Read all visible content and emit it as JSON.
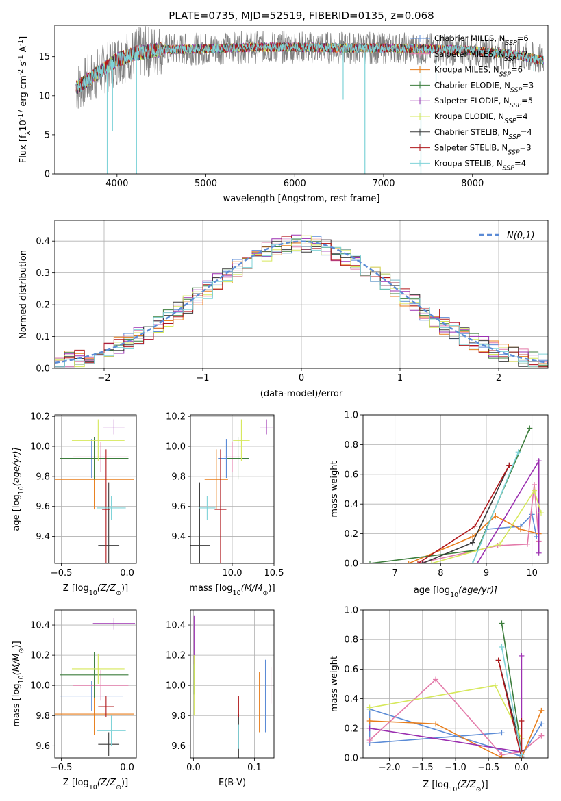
{
  "colors": {
    "Chabrier MILES": "#5b8bd6",
    "Salpeter MILES": "#e37aa9",
    "Kroupa MILES": "#e87e1c",
    "Chabrier ELODIE": "#3c7d3c",
    "Salpeter ELODIE": "#9b2fb0",
    "Kroupa ELODIE": "#d6e85a",
    "Chabrier STELIB": "#3a3a3a",
    "Salpeter STELIB": "#b0181c",
    "Kroupa STELIB": "#7fd3d8",
    "normal": "#5b8bd6",
    "grid": "#b0b0b0"
  },
  "chart_data": [
    {
      "id": "spectrum",
      "type": "line",
      "title": "PLATE=0735, MJD=52519, FIBERID=0135, z=0.068",
      "xlabel": "wavelength [Angstrom, rest frame]",
      "ylabel": "Flux [f",
      "ylabel_rest": "10",
      "ylabel_exp": "-17",
      "ylabel_tail": " erg cm",
      "ylabel_exp2": "-2",
      "ylabel_tail2": " s",
      "ylabel_exp3": "-1",
      "ylabel_tail3": " A",
      "ylabel_exp4": "-1",
      "ylabel_end": "]",
      "xlim": [
        3300,
        8850
      ],
      "ylim": [
        0,
        19
      ],
      "xticks": [
        4000,
        5000,
        6000,
        7000,
        8000
      ],
      "yticks": [
        0,
        5,
        10,
        15
      ],
      "legend_position": "right",
      "legend": [
        {
          "model": "Chabrier MILES",
          "n": "6"
        },
        {
          "model": "Salpeter MILES",
          "n": "7"
        },
        {
          "model": "Kroupa MILES",
          "n": "6"
        },
        {
          "model": "Chabrier ELODIE",
          "n": "3"
        },
        {
          "model": "Salpeter ELODIE",
          "n": "5"
        },
        {
          "model": "Kroupa ELODIE",
          "n": "4"
        },
        {
          "model": "Chabrier STELIB",
          "n": "4"
        },
        {
          "model": "Salpeter STELIB",
          "n": "3"
        },
        {
          "model": "Kroupa STELIB",
          "n": "4"
        }
      ],
      "legend_prefix": "N",
      "legend_sub": "SSP",
      "continuum": [
        [
          3540,
          11
        ],
        [
          3800,
          13
        ],
        [
          4000,
          14.6
        ],
        [
          4200,
          15.4
        ],
        [
          4500,
          15.9
        ],
        [
          5000,
          16.0
        ],
        [
          5500,
          16.2
        ],
        [
          6000,
          16.2
        ],
        [
          6500,
          16.1
        ],
        [
          7000,
          16.1
        ],
        [
          7500,
          16.0
        ],
        [
          8000,
          15.8
        ],
        [
          8500,
          15.2
        ],
        [
          8800,
          14.5
        ]
      ],
      "dips": [
        [
          3890,
          0
        ],
        [
          4220,
          0
        ],
        [
          6790,
          0
        ],
        [
          7420,
          0
        ],
        [
          3950,
          5.5
        ],
        [
          6545,
          9.5
        ],
        [
          7590,
          11.5
        ],
        [
          8690,
          13.2
        ]
      ]
    },
    {
      "id": "residuals",
      "type": "histogram",
      "xlabel": "(data-model)/error",
      "ylabel": "Normed distribution",
      "xlim": [
        -2.5,
        2.5
      ],
      "ylim": [
        0,
        0.465
      ],
      "xticks": [
        -2,
        -1,
        0,
        1,
        2
      ],
      "yticks": [
        0.0,
        0.1,
        0.2,
        0.3,
        0.4
      ],
      "grid": true,
      "legend_position": "top-right",
      "legend_label": "N(0,1)",
      "bin_width": 0.1
    },
    {
      "id": "age_vs_Z",
      "type": "scatter",
      "xlabel": "Z [log",
      "xlabel_sub": "10",
      "xlabel_tail": "(Z/Z",
      "xlabel_sub2": "⊙",
      "xlabel_end": ")]",
      "ylabel": "age  [log",
      "ylabel_sub": "10",
      "ylabel_tail": "(age/yr)]",
      "xlim": [
        -0.55,
        0.07
      ],
      "ylim": [
        9.22,
        10.21
      ],
      "xticks": [
        -0.5,
        0.0
      ],
      "yticks": [
        9.4,
        9.6,
        9.8,
        10.0,
        10.2
      ],
      "grid": true,
      "points": [
        {
          "model": "Chabrier MILES",
          "x": -0.27,
          "xerr": 0.24,
          "y": 9.92,
          "yerr": 0.13
        },
        {
          "model": "Salpeter MILES",
          "x": -0.2,
          "xerr": 0.21,
          "y": 9.93,
          "yerr": 0.1
        },
        {
          "model": "Kroupa MILES",
          "x": -0.25,
          "xerr": 0.3,
          "y": 9.78,
          "yerr": 0.2
        },
        {
          "model": "Chabrier ELODIE",
          "x": -0.25,
          "xerr": 0.26,
          "y": 9.92,
          "yerr": 0.14
        },
        {
          "model": "Salpeter ELODIE",
          "x": -0.1,
          "xerr": 0.08,
          "y": 10.13,
          "yerr": 0.05
        },
        {
          "model": "Kroupa ELODIE",
          "x": -0.22,
          "xerr": 0.2,
          "y": 10.04,
          "yerr": 0.14
        },
        {
          "model": "Chabrier STELIB",
          "x": -0.14,
          "xerr": 0.08,
          "y": 9.34,
          "yerr": 0.42
        },
        {
          "model": "Salpeter STELIB",
          "x": -0.16,
          "xerr": 0.03,
          "y": 9.58,
          "yerr": 0.4
        },
        {
          "model": "Kroupa STELIB",
          "x": -0.12,
          "xerr": 0.11,
          "y": 9.59,
          "yerr": 0.08
        }
      ]
    },
    {
      "id": "age_vs_mass",
      "type": "scatter",
      "xlabel": "mass [log",
      "xlabel_sub": "10",
      "xlabel_tail": "(M/M",
      "xlabel_sub2": "⊙",
      "xlabel_end": ")]",
      "xlim": [
        9.5,
        10.5
      ],
      "ylim": [
        9.22,
        10.21
      ],
      "xticks": [
        10.0,
        10.5
      ],
      "yticks": [
        9.4,
        9.6,
        9.8,
        10.0,
        10.2
      ],
      "grid": true,
      "points": [
        {
          "model": "Chabrier MILES",
          "x": 9.93,
          "xerr": 0.1,
          "y": 9.92,
          "yerr": 0.13
        },
        {
          "model": "Salpeter MILES",
          "x": 10.0,
          "xerr": 0.1,
          "y": 9.93,
          "yerr": 0.1
        },
        {
          "model": "Kroupa MILES",
          "x": 9.81,
          "xerr": 0.14,
          "y": 9.78,
          "yerr": 0.2
        },
        {
          "model": "Chabrier ELODIE",
          "x": 10.07,
          "xerr": 0.13,
          "y": 9.92,
          "yerr": 0.14
        },
        {
          "model": "Salpeter ELODIE",
          "x": 10.41,
          "xerr": 0.08,
          "y": 10.13,
          "yerr": 0.05
        },
        {
          "model": "Kroupa ELODIE",
          "x": 10.11,
          "xerr": 0.1,
          "y": 10.04,
          "yerr": 0.14
        },
        {
          "model": "Chabrier STELIB",
          "x": 9.61,
          "xerr": 0.12,
          "y": 9.34,
          "yerr": 0.42
        },
        {
          "model": "Salpeter STELIB",
          "x": 9.86,
          "xerr": 0.07,
          "y": 9.58,
          "yerr": 0.4
        },
        {
          "model": "Kroupa STELIB",
          "x": 9.7,
          "xerr": 0.1,
          "y": 9.59,
          "yerr": 0.08
        }
      ]
    },
    {
      "id": "weight_vs_age",
      "type": "line",
      "xlabel": "age  [log",
      "xlabel_sub": "10",
      "xlabel_tail": "(age/yr)]",
      "ylabel": "mass weight",
      "xlim": [
        6.3,
        10.35
      ],
      "ylim": [
        0,
        1.0
      ],
      "xticks": [
        7,
        8,
        9,
        10
      ],
      "yticks": [
        0.0,
        0.2,
        0.4,
        0.6,
        0.8,
        1.0
      ],
      "grid": true,
      "series": [
        {
          "model": "Chabrier MILES",
          "x": [
            8.7,
            9.0,
            9.75,
            10.0,
            10.1
          ],
          "y": [
            0.0,
            0.23,
            0.25,
            0.33,
            0.18
          ]
        },
        {
          "model": "Salpeter MILES",
          "x": [
            7.5,
            9.25,
            9.9,
            10.05,
            10.15
          ],
          "y": [
            0.0,
            0.12,
            0.13,
            0.53,
            0.15
          ]
        },
        {
          "model": "Kroupa MILES",
          "x": [
            7.3,
            8.7,
            9.2,
            9.75,
            10.15
          ],
          "y": [
            0.0,
            0.18,
            0.32,
            0.23,
            0.2
          ]
        },
        {
          "model": "Chabrier ELODIE",
          "x": [
            6.45,
            8.8,
            9.95
          ],
          "y": [
            0.0,
            0.09,
            0.91
          ]
        },
        {
          "model": "Salpeter ELODIE",
          "x": [
            8.8,
            10.15,
            10.15
          ],
          "y": [
            0.0,
            0.69,
            0.07
          ]
        },
        {
          "model": "Kroupa ELODIE",
          "x": [
            7.8,
            9.3,
            10.05,
            10.2
          ],
          "y": [
            0.0,
            0.13,
            0.49,
            0.34
          ]
        },
        {
          "model": "Chabrier STELIB",
          "x": [
            7.6,
            8.7,
            9.5
          ],
          "y": [
            0.0,
            0.14,
            0.66
          ]
        },
        {
          "model": "Salpeter STELIB",
          "x": [
            7.5,
            8.75,
            9.5
          ],
          "y": [
            0.0,
            0.25,
            0.66
          ]
        },
        {
          "model": "Kroupa STELIB",
          "x": [
            8.7,
            9.7
          ],
          "y": [
            0.0,
            0.75
          ]
        }
      ]
    },
    {
      "id": "mass_vs_Z",
      "type": "scatter",
      "xlabel": "Z [log",
      "xlabel_sub": "10",
      "xlabel_tail": "(Z/Z",
      "xlabel_sub2": "⊙",
      "xlabel_end": ")]",
      "ylabel": "mass [log",
      "ylabel_sub": "10",
      "ylabel_tail": "(M/M",
      "ylabel_sub2": "⊙",
      "ylabel_end": ")]",
      "xlim": [
        -0.55,
        0.07
      ],
      "ylim": [
        9.52,
        10.5
      ],
      "xticks": [
        -0.5,
        0.0
      ],
      "yticks": [
        9.6,
        9.8,
        10.0,
        10.2,
        10.4
      ],
      "grid": true,
      "points": [
        {
          "model": "Chabrier MILES",
          "x": -0.27,
          "xerr": 0.24,
          "y": 9.93,
          "yerr": 0.1
        },
        {
          "model": "Salpeter MILES",
          "x": -0.2,
          "xerr": 0.21,
          "y": 10.0,
          "yerr": 0.1
        },
        {
          "model": "Kroupa MILES",
          "x": -0.25,
          "xerr": 0.3,
          "y": 9.81,
          "yerr": 0.14
        },
        {
          "model": "Chabrier ELODIE",
          "x": -0.25,
          "xerr": 0.26,
          "y": 10.07,
          "yerr": 0.15
        },
        {
          "model": "Salpeter ELODIE",
          "x": -0.1,
          "xerr": 0.16,
          "y": 10.41,
          "yerr": 0.04
        },
        {
          "model": "Kroupa ELODIE",
          "x": -0.22,
          "xerr": 0.2,
          "y": 10.11,
          "yerr": 0.1
        },
        {
          "model": "Chabrier STELIB",
          "x": -0.14,
          "xerr": 0.08,
          "y": 9.61,
          "yerr": 0.08
        },
        {
          "model": "Salpeter STELIB",
          "x": -0.16,
          "xerr": 0.06,
          "y": 9.86,
          "yerr": 0.07
        },
        {
          "model": "Kroupa STELIB",
          "x": -0.12,
          "xerr": 0.11,
          "y": 9.7,
          "yerr": 0.1
        }
      ]
    },
    {
      "id": "mass_vs_EBV",
      "type": "scatter",
      "xlabel": "E(B-V)",
      "xlim": [
        -0.005,
        0.132
      ],
      "ylim": [
        9.52,
        10.5
      ],
      "xticks": [
        0.0,
        0.1
      ],
      "yticks": [
        9.6,
        9.8,
        10.0,
        10.2,
        10.4
      ],
      "grid": true,
      "points": [
        {
          "model": "Chabrier MILES",
          "x": 0.118,
          "y": 9.93,
          "yerr": 0.24
        },
        {
          "model": "Salpeter MILES",
          "x": 0.127,
          "y": 10.0,
          "yerr": 0.12
        },
        {
          "model": "Kroupa MILES",
          "x": 0.108,
          "y": 9.89,
          "yerr": 0.2
        },
        {
          "model": "Chabrier ELODIE",
          "x": 0.001,
          "y": 10.07,
          "yerr": 0.13
        },
        {
          "model": "Salpeter ELODIE",
          "x": 0.001,
          "y": 10.3,
          "yerr": 0.16
        },
        {
          "model": "Kroupa ELODIE",
          "x": 0.001,
          "y": 10.0,
          "yerr": 0.2
        },
        {
          "model": "Chabrier STELIB",
          "x": 0.074,
          "y": 9.66,
          "yerr": 0.15
        },
        {
          "model": "Salpeter STELIB",
          "x": 0.074,
          "y": 9.86,
          "yerr": 0.07
        },
        {
          "model": "Kroupa STELIB",
          "x": 0.074,
          "y": 9.66,
          "yerr": 0.08
        }
      ]
    },
    {
      "id": "weight_vs_Z",
      "type": "line",
      "xlabel": "Z [log",
      "xlabel_sub": "10",
      "xlabel_tail": "(Z/Z",
      "xlabel_sub2": "⊙",
      "xlabel_end": ")]",
      "ylabel": "mass weight",
      "xlim": [
        -2.4,
        0.4
      ],
      "ylim": [
        0,
        1.0
      ],
      "xticks": [
        -2.0,
        -1.5,
        -1.0,
        -0.5,
        0.0
      ],
      "yticks": [
        0.0,
        0.2,
        0.4,
        0.6,
        0.8,
        1.0
      ],
      "grid": true,
      "series": [
        {
          "model": "Chabrier MILES",
          "x": [
            -0.3,
            -2.3,
            -2.3,
            0.0,
            0.3
          ],
          "y": [
            0.17,
            0.1,
            0.33,
            0.01,
            0.23
          ]
        },
        {
          "model": "Salpeter MILES",
          "x": [
            -2.3,
            -1.3,
            -0.3,
            0.0,
            0.3
          ],
          "y": [
            0.12,
            0.53,
            0.02,
            0.04,
            0.15
          ]
        },
        {
          "model": "Kroupa MILES",
          "x": [
            -2.3,
            -1.3,
            -0.3,
            0.0,
            0.3
          ],
          "y": [
            0.25,
            0.23,
            0.0,
            0.0,
            0.32
          ]
        },
        {
          "model": "Chabrier ELODIE",
          "x": [
            -0.3,
            -0.05,
            0.0
          ],
          "y": [
            0.91,
            0.2,
            0.0
          ]
        },
        {
          "model": "Salpeter ELODIE",
          "x": [
            -2.3,
            0.0,
            0.0
          ],
          "y": [
            0.2,
            0.04,
            0.69
          ]
        },
        {
          "model": "Kroupa ELODIE",
          "x": [
            -2.3,
            -0.4,
            0.0
          ],
          "y": [
            0.34,
            0.49,
            0.13
          ]
        },
        {
          "model": "Chabrier STELIB",
          "x": [
            -0.35,
            0.0
          ],
          "y": [
            0.66,
            0.05
          ]
        },
        {
          "model": "Salpeter STELIB",
          "x": [
            -0.35,
            0.0,
            0.0
          ],
          "y": [
            0.66,
            0.0,
            0.25
          ]
        },
        {
          "model": "Kroupa STELIB",
          "x": [
            -0.3,
            0.0
          ],
          "y": [
            0.75,
            0.02
          ]
        }
      ]
    }
  ]
}
